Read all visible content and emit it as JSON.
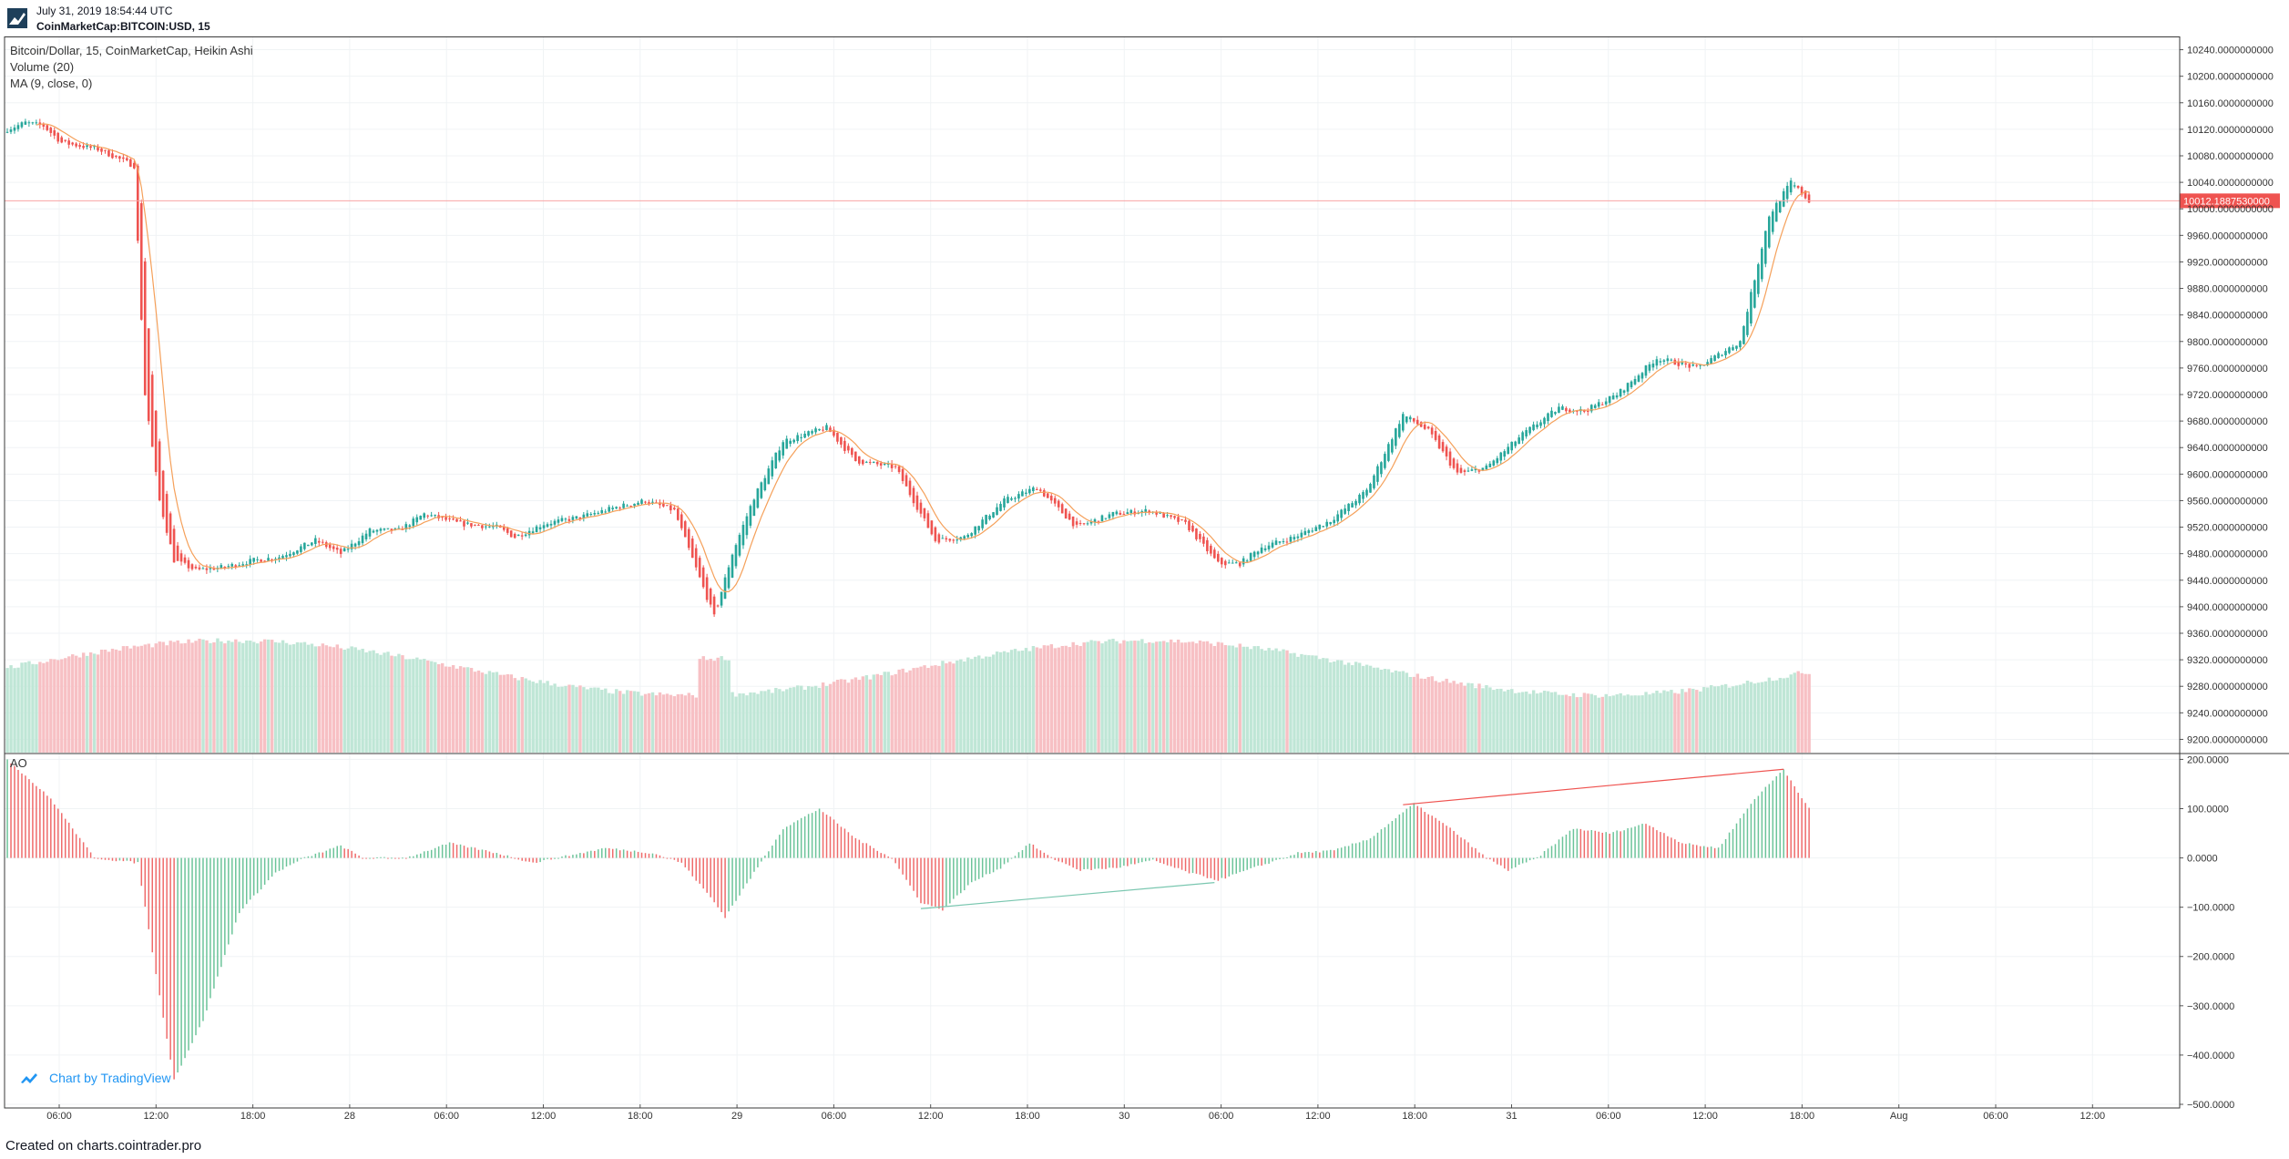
{
  "header": {
    "timestamp": "July 31, 2019 18:54:44 UTC",
    "symbol": "CoinMarketCap:BITCOIN:USD, 15"
  },
  "legend": {
    "main": "Bitcoin/Dollar, 15, CoinMarketCap, Heikin Ashi",
    "volume": "Volume (20)",
    "ma": "MA (9, close, 0)",
    "ao": "AO"
  },
  "watermark": "Chart by TradingView",
  "footer": "Created on charts.cointrader.pro",
  "colors": {
    "up": "#26a69a",
    "down": "#ef5350",
    "vol_up": "#bfe6d6",
    "vol_down": "#f7c0c4",
    "ma": "#f5a05a",
    "grid": "#f0f3f5",
    "price_line": "#f8a5a5",
    "price_tag": "#ef5350"
  },
  "chart_data": [
    {
      "type": "candlestick",
      "title": "Bitcoin/Dollar, 15, CoinMarketCap, Heikin Ashi",
      "ylim": [
        9180,
        10260
      ],
      "y_ticks": [
        "10240.0000000000",
        "10200.0000000000",
        "10160.0000000000",
        "10120.0000000000",
        "10080.0000000000",
        "10040.0000000000",
        "10000.0000000000",
        "9960.0000000000",
        "9920.0000000000",
        "9880.0000000000",
        "9840.0000000000",
        "9800.0000000000",
        "9760.0000000000",
        "9720.0000000000",
        "9680.0000000000",
        "9640.0000000000",
        "9600.0000000000",
        "9560.0000000000",
        "9520.0000000000",
        "9480.0000000000",
        "9440.0000000000",
        "9400.0000000000",
        "9360.0000000000",
        "9320.0000000000",
        "9280.0000000000",
        "9240.0000000000",
        "9200.0000000000"
      ],
      "x_labels": [
        "06:00",
        "12:00",
        "18:00",
        "28",
        "06:00",
        "12:00",
        "18:00",
        "29",
        "06:00",
        "12:00",
        "18:00",
        "30",
        "06:00",
        "12:00",
        "18:00",
        "31",
        "06:00",
        "12:00",
        "18:00",
        "Aug",
        "06:00",
        "12:00"
      ],
      "last_price": "10012.1887530000",
      "last_price_value": 10012.19,
      "price_anchors": [
        [
          0,
          10120
        ],
        [
          5,
          10130
        ],
        [
          10,
          10125
        ],
        [
          15,
          10100
        ],
        [
          20,
          10095
        ],
        [
          25,
          10090
        ],
        [
          35,
          10065
        ],
        [
          36,
          9950
        ],
        [
          38,
          9720
        ],
        [
          42,
          9560
        ],
        [
          46,
          9470
        ],
        [
          52,
          9455
        ],
        [
          60,
          9460
        ],
        [
          68,
          9470
        ],
        [
          75,
          9475
        ],
        [
          85,
          9500
        ],
        [
          92,
          9480
        ],
        [
          100,
          9515
        ],
        [
          108,
          9515
        ],
        [
          115,
          9540
        ],
        [
          125,
          9525
        ],
        [
          135,
          9520
        ],
        [
          140,
          9505
        ],
        [
          148,
          9525
        ],
        [
          158,
          9535
        ],
        [
          168,
          9550
        ],
        [
          176,
          9560
        ],
        [
          184,
          9545
        ],
        [
          195,
          9385
        ],
        [
          200,
          9480
        ],
        [
          206,
          9565
        ],
        [
          214,
          9650
        ],
        [
          226,
          9670
        ],
        [
          234,
          9620
        ],
        [
          245,
          9610
        ],
        [
          256,
          9500
        ],
        [
          264,
          9505
        ],
        [
          275,
          9560
        ],
        [
          284,
          9580
        ],
        [
          295,
          9520
        ],
        [
          305,
          9540
        ],
        [
          315,
          9545
        ],
        [
          325,
          9525
        ],
        [
          334,
          9465
        ],
        [
          340,
          9465
        ],
        [
          346,
          9490
        ],
        [
          355,
          9505
        ],
        [
          365,
          9530
        ],
        [
          375,
          9575
        ],
        [
          385,
          9690
        ],
        [
          392,
          9665
        ],
        [
          400,
          9600
        ],
        [
          408,
          9610
        ],
        [
          418,
          9660
        ],
        [
          428,
          9700
        ],
        [
          435,
          9695
        ],
        [
          444,
          9720
        ],
        [
          455,
          9775
        ],
        [
          466,
          9760
        ],
        [
          478,
          9800
        ],
        [
          486,
          9990
        ],
        [
          492,
          10040
        ],
        [
          497,
          10012
        ]
      ],
      "n_candles": 498
    },
    {
      "type": "bar",
      "title": "Volume (20)"
    },
    {
      "type": "bar",
      "title": "AO",
      "ylim": [
        -500,
        210
      ],
      "y_ticks": [
        "200.0000",
        "100.0000",
        "0.0000",
        "−100.0000",
        "−200.0000",
        "−300.0000",
        "−400.0000",
        "−500.0000"
      ],
      "ao_anchors": [
        [
          0,
          200
        ],
        [
          12,
          120
        ],
        [
          24,
          0
        ],
        [
          36,
          -10
        ],
        [
          42,
          -280
        ],
        [
          46,
          -450
        ],
        [
          54,
          -330
        ],
        [
          64,
          -110
        ],
        [
          74,
          -30
        ],
        [
          82,
          0
        ],
        [
          92,
          25
        ],
        [
          98,
          0
        ],
        [
          110,
          0
        ],
        [
          122,
          30
        ],
        [
          135,
          10
        ],
        [
          145,
          -10
        ],
        [
          155,
          5
        ],
        [
          165,
          20
        ],
        [
          178,
          10
        ],
        [
          186,
          -10
        ],
        [
          194,
          -80
        ],
        [
          198,
          -120
        ],
        [
          206,
          -30
        ],
        [
          214,
          60
        ],
        [
          224,
          100
        ],
        [
          234,
          40
        ],
        [
          244,
          0
        ],
        [
          252,
          -90
        ],
        [
          258,
          -105
        ],
        [
          266,
          -50
        ],
        [
          274,
          -20
        ],
        [
          282,
          30
        ],
        [
          288,
          0
        ],
        [
          296,
          -25
        ],
        [
          306,
          -20
        ],
        [
          316,
          -5
        ],
        [
          326,
          -30
        ],
        [
          334,
          -45
        ],
        [
          344,
          -20
        ],
        [
          356,
          10
        ],
        [
          366,
          15
        ],
        [
          376,
          40
        ],
        [
          388,
          110
        ],
        [
          398,
          60
        ],
        [
          408,
          0
        ],
        [
          414,
          -25
        ],
        [
          422,
          0
        ],
        [
          432,
          60
        ],
        [
          442,
          50
        ],
        [
          452,
          70
        ],
        [
          462,
          30
        ],
        [
          472,
          20
        ],
        [
          482,
          120
        ],
        [
          490,
          180
        ],
        [
          497,
          100
        ]
      ],
      "trendlines": [
        {
          "from_index": 252,
          "from_value": -103,
          "to_index": 333,
          "to_value": -50,
          "color": "#7ac7b0"
        },
        {
          "from_index": 385,
          "from_value": 108,
          "to_index": 490,
          "to_value": 180,
          "color": "#ef5350"
        }
      ]
    }
  ]
}
